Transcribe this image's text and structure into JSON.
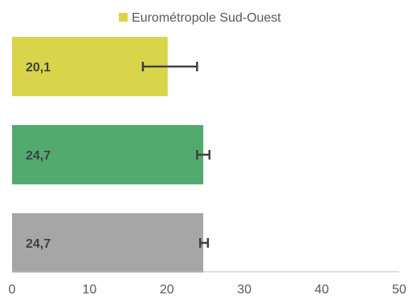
{
  "chart_data": {
    "type": "bar",
    "orientation": "horizontal",
    "categories": [
      "Eurométropole Sud-Ouest",
      "",
      ""
    ],
    "series": [
      {
        "name": "Eurométropole Sud-Ouest",
        "values": [
          20.1,
          24.7,
          24.7
        ],
        "value_labels": [
          "20,1",
          "24,7",
          "24,7"
        ],
        "error_low": [
          16.9,
          23.9,
          24.3
        ],
        "error_high": [
          23.9,
          25.5,
          25.3
        ],
        "colors": [
          "#D9D44A",
          "#52AA6E",
          "#A6A6A6"
        ]
      }
    ],
    "x_ticks": [
      "0",
      "10",
      "20",
      "30",
      "40",
      "50"
    ],
    "xlim": [
      0,
      50
    ],
    "grid": false,
    "legend": {
      "position": "top",
      "label": "Eurométropole Sud-Ouest",
      "color": "#D9D44A"
    },
    "error_bar_color": "#404040"
  }
}
